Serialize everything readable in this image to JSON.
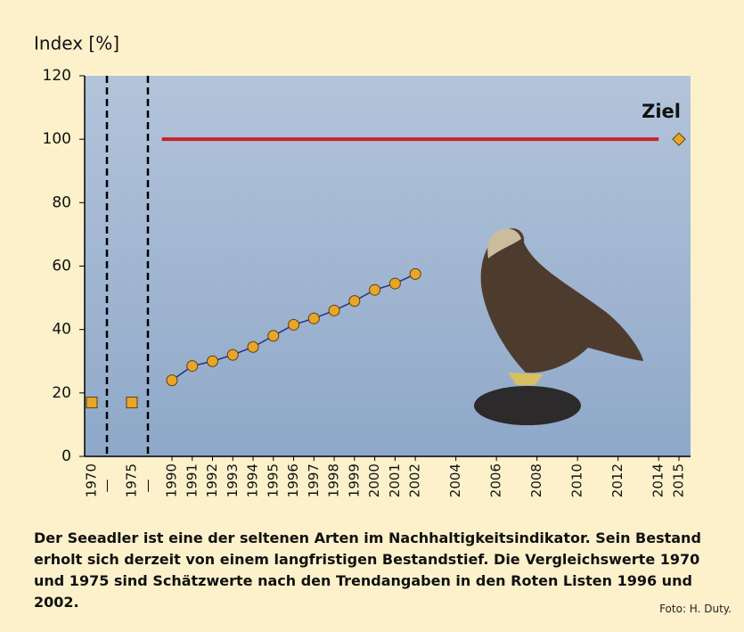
{
  "chart_data": {
    "type": "line",
    "ylabel": "Index [%]",
    "ylim": [
      0,
      120
    ],
    "yticks": [
      0,
      20,
      40,
      60,
      80,
      100,
      120
    ],
    "xlim": [
      1990,
      2015
    ],
    "xticks": [
      1990,
      1991,
      1992,
      1993,
      1994,
      1995,
      1996,
      1997,
      1998,
      1999,
      2000,
      2001,
      2002,
      2004,
      2006,
      2008,
      2010,
      2012,
      2014,
      2015
    ],
    "early": {
      "categories": [
        "1970",
        "1975"
      ],
      "values": [
        17,
        17
      ],
      "marker": "square",
      "color": "#e8a628",
      "breaks": [
        "—",
        "—"
      ]
    },
    "series": [
      {
        "x": [
          1990,
          1991,
          1992,
          1993,
          1994,
          1995,
          1996,
          1997,
          1998,
          1999,
          2000,
          2001,
          2002
        ],
        "values": [
          24,
          28.5,
          30,
          32,
          34.5,
          38,
          41.5,
          43.5,
          46,
          49,
          52.5,
          54.5,
          57.5
        ],
        "marker": "circle",
        "color": "#e8a628",
        "line_color": "#2b2f86"
      },
      {
        "x": [
          1989.5,
          2014
        ],
        "values": [
          100,
          100
        ],
        "color": "#c8232c"
      }
    ],
    "target": {
      "text": "Ziel",
      "x": 2015,
      "y": 100,
      "marker": "diamond",
      "color": "#e8a628"
    },
    "caption": "Der Seeadler ist eine der seltenen Arten im Nachhaltigkeitsindikator. Sein Bestand erholt sich derzeit von einem langfristigen Bestandstief. Die Vergleichswerte 1970 und 1975 sind Schätzwerte nach den Trendangaben in den Roten Listen 1996 und 2002.",
    "credit": "Foto: H. Duty."
  }
}
